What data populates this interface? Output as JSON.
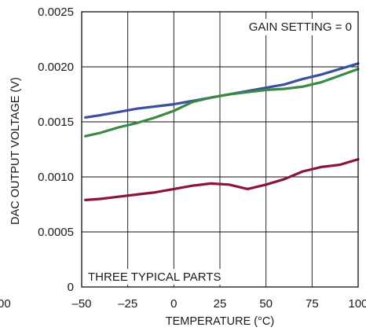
{
  "chart_data": {
    "type": "line",
    "xlabel": "TEMPERATURE (°C)",
    "ylabel": "DAC OUTPUT VOLTAGE (V)",
    "xlim": [
      -50,
      100
    ],
    "ylim": [
      0,
      0.0025
    ],
    "x_ticks": [
      "–50",
      "–25",
      "0",
      "25",
      "50",
      "75",
      "100"
    ],
    "x_tick_values": [
      -50,
      -25,
      0,
      25,
      50,
      75,
      100
    ],
    "y_ticks": [
      "0",
      "0.0005",
      "0.0010",
      "0.0015",
      "0.0020",
      "0.0025"
    ],
    "y_tick_values": [
      0,
      0.0005,
      0.001,
      0.0015,
      0.002,
      0.0025
    ],
    "cut_off_left_label": "00",
    "grid": true,
    "annotations": {
      "top_right": "GAIN SETTING = 0",
      "bottom_left": "THREE TYPICAL PARTS"
    },
    "x": [
      -48,
      -40,
      -30,
      -20,
      -10,
      0,
      10,
      20,
      30,
      40,
      50,
      60,
      70,
      80,
      90,
      100
    ],
    "series": [
      {
        "color": "#3a4fa0",
        "values": [
          0.00154,
          0.00156,
          0.00159,
          0.00162,
          0.00164,
          0.00166,
          0.00169,
          0.00172,
          0.00175,
          0.00178,
          0.00181,
          0.00184,
          0.00189,
          0.00193,
          0.00198,
          0.00203
        ]
      },
      {
        "color": "#3a8a45",
        "values": [
          0.00137,
          0.0014,
          0.00145,
          0.00149,
          0.00154,
          0.0016,
          0.00168,
          0.00172,
          0.00175,
          0.00177,
          0.00179,
          0.0018,
          0.00182,
          0.00186,
          0.00192,
          0.00198
        ]
      },
      {
        "color": "#8a1535",
        "values": [
          0.00079,
          0.0008,
          0.00082,
          0.00084,
          0.00086,
          0.00089,
          0.00092,
          0.00094,
          0.00093,
          0.00089,
          0.00093,
          0.00098,
          0.00105,
          0.00109,
          0.00111,
          0.00116
        ]
      }
    ]
  }
}
